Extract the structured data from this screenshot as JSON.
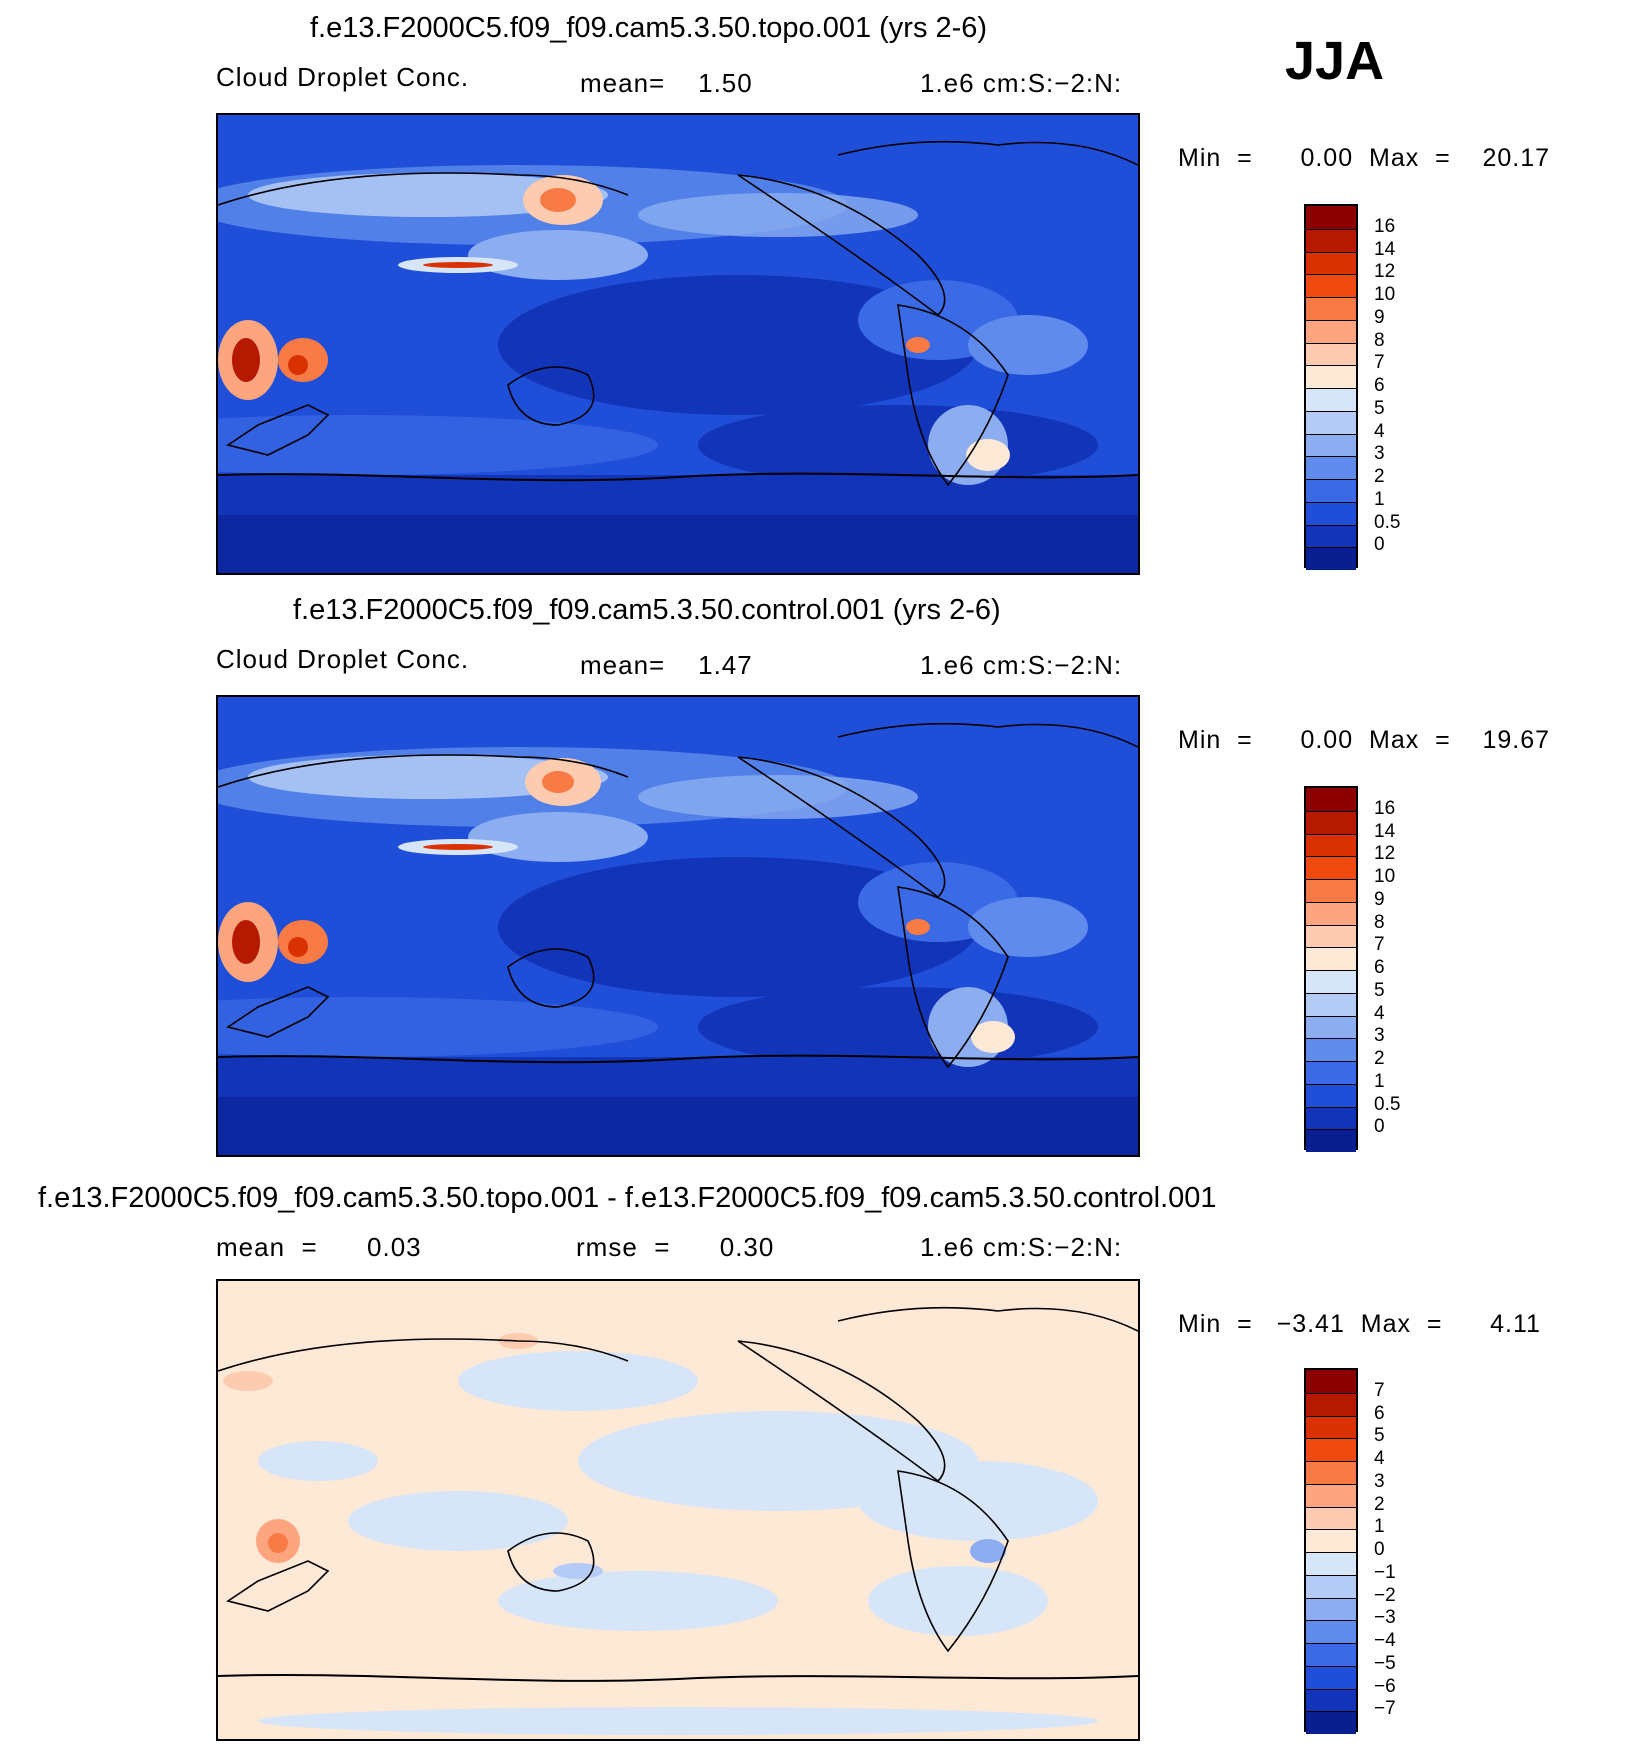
{
  "season": "JJA",
  "panels": [
    {
      "title": "f.e13.F2000C5.f09_f09.cam5.3.50.topo.001 (yrs 2-6)",
      "left_text": "Cloud Droplet Conc.",
      "mid_text": "mean=    1.50",
      "units": "1.e6 cm:S:−2:N:",
      "minmax": "Min  =      0.00  Max  =    20.17",
      "colorbar": {
        "labels": [
          "16",
          "14",
          "12",
          "10",
          "9",
          "8",
          "7",
          "6",
          "5",
          "4",
          "3",
          "2",
          "1",
          "0.5",
          "0"
        ],
        "colors": [
          "#8b0000",
          "#b51a00",
          "#d93100",
          "#ee4a10",
          "#f87a45",
          "#fca57e",
          "#fdccb0",
          "#fee8d6",
          "#d6e6f8",
          "#b4cbf5",
          "#8caef0",
          "#5f8cec",
          "#3a6ae6",
          "#1f4fd9",
          "#1234b8",
          "#0a1f8f"
        ]
      }
    },
    {
      "title": "f.e13.F2000C5.f09_f09.cam5.3.50.control.001 (yrs 2-6)",
      "left_text": "Cloud Droplet Conc.",
      "mid_text": "mean=    1.47",
      "units": "1.e6 cm:S:−2:N:",
      "minmax": "Min  =      0.00  Max  =    19.67",
      "colorbar": {
        "labels": [
          "16",
          "14",
          "12",
          "10",
          "9",
          "8",
          "7",
          "6",
          "5",
          "4",
          "3",
          "2",
          "1",
          "0.5",
          "0"
        ],
        "colors": [
          "#8b0000",
          "#b51a00",
          "#d93100",
          "#ee4a10",
          "#f87a45",
          "#fca57e",
          "#fdccb0",
          "#fee8d6",
          "#d6e6f8",
          "#b4cbf5",
          "#8caef0",
          "#5f8cec",
          "#3a6ae6",
          "#1f4fd9",
          "#1234b8",
          "#0a1f8f"
        ]
      }
    },
    {
      "title": "f.e13.F2000C5.f09_f09.cam5.3.50.topo.001 - f.e13.F2000C5.f09_f09.cam5.3.50.control.001",
      "left_text": "mean  =      0.03",
      "mid_text": "rmse  =      0.30",
      "units": "1.e6 cm:S:−2:N:",
      "minmax": "Min  =   −3.41  Max  =      4.11",
      "colorbar": {
        "labels": [
          "7",
          "6",
          "5",
          "4",
          "3",
          "2",
          "1",
          "0",
          "−1",
          "−2",
          "−3",
          "−4",
          "−5",
          "−6",
          "−7"
        ],
        "colors": [
          "#8b0000",
          "#b51a00",
          "#d93100",
          "#ee4a10",
          "#f87a45",
          "#fca57e",
          "#fdccb0",
          "#fee8d6",
          "#d6e6f8",
          "#b4cbf5",
          "#8caef0",
          "#5f8cec",
          "#3a6ae6",
          "#1f4fd9",
          "#1234b8",
          "#0a1f8f"
        ]
      }
    }
  ],
  "chart_data": {
    "type": "heatmap",
    "season": "JJA",
    "variable": "Cloud Droplet Conc.",
    "units": "1.e6 cm:S:−2:N:",
    "fields": [
      {
        "name": "f.e13.F2000C5.f09_f09.cam5.3.50.topo.001 (yrs 2-6)",
        "mean": 1.5,
        "min": 0.0,
        "max": 20.17,
        "levels": [
          0,
          0.5,
          1,
          2,
          3,
          4,
          5,
          6,
          7,
          8,
          9,
          10,
          12,
          14,
          16
        ]
      },
      {
        "name": "f.e13.F2000C5.f09_f09.cam5.3.50.control.001 (yrs 2-6)",
        "mean": 1.47,
        "min": 0.0,
        "max": 19.67,
        "levels": [
          0,
          0.5,
          1,
          2,
          3,
          4,
          5,
          6,
          7,
          8,
          9,
          10,
          12,
          14,
          16
        ]
      },
      {
        "name": "f.e13.F2000C5.f09_f09.cam5.3.50.topo.001 - f.e13.F2000C5.f09_f09.cam5.3.50.control.001",
        "mean": 0.03,
        "rmse": 0.3,
        "min": -3.41,
        "max": 4.11,
        "levels": [
          -7,
          -6,
          -5,
          -4,
          -3,
          -2,
          -1,
          0,
          1,
          2,
          3,
          4,
          5,
          6,
          7
        ]
      }
    ]
  }
}
